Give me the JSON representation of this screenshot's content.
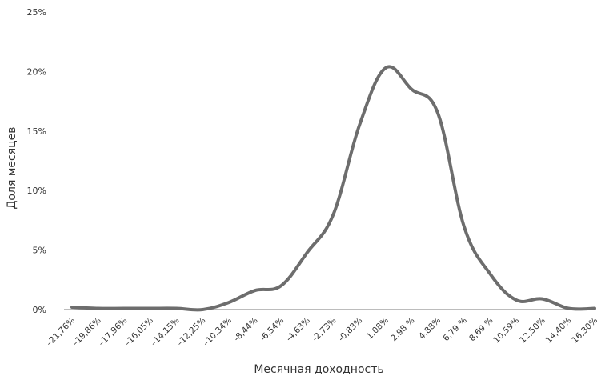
{
  "chart_data": {
    "type": "line",
    "xlabel": "Месячная доходность",
    "ylabel": "Доля месяцев",
    "ylim": [
      0,
      25
    ],
    "y_ticks": [
      "0%",
      "5%",
      "10%",
      "15%",
      "20%",
      "25%"
    ],
    "y_tick_values": [
      0,
      5,
      10,
      15,
      20,
      25
    ],
    "categories": [
      "–21,76%",
      "–19,86%",
      "–17,96%",
      "–16,05%",
      "–14,15%",
      "–12,25%",
      "–10,34%",
      "-8,44%",
      "-6,54%",
      "-4,63%",
      "-2,73%",
      "-0,83%",
      "1,08%",
      "2,98 %",
      "4,88%",
      "6,79 %",
      "8,69 %",
      "10,59%",
      "12,50%",
      "14,40%",
      "16,30%"
    ],
    "series": [
      {
        "values": [
          0.2,
          0.1,
          0.1,
          0.1,
          0.1,
          0.0,
          0.6,
          1.6,
          2.0,
          4.8,
          8.0,
          15.5,
          20.3,
          18.5,
          16.5,
          7.0,
          3.0,
          0.8,
          0.9,
          0.1,
          0.1
        ]
      }
    ],
    "grid": false,
    "line_color": "#6d6d6d",
    "baseline_color": "#a6a6a6"
  }
}
